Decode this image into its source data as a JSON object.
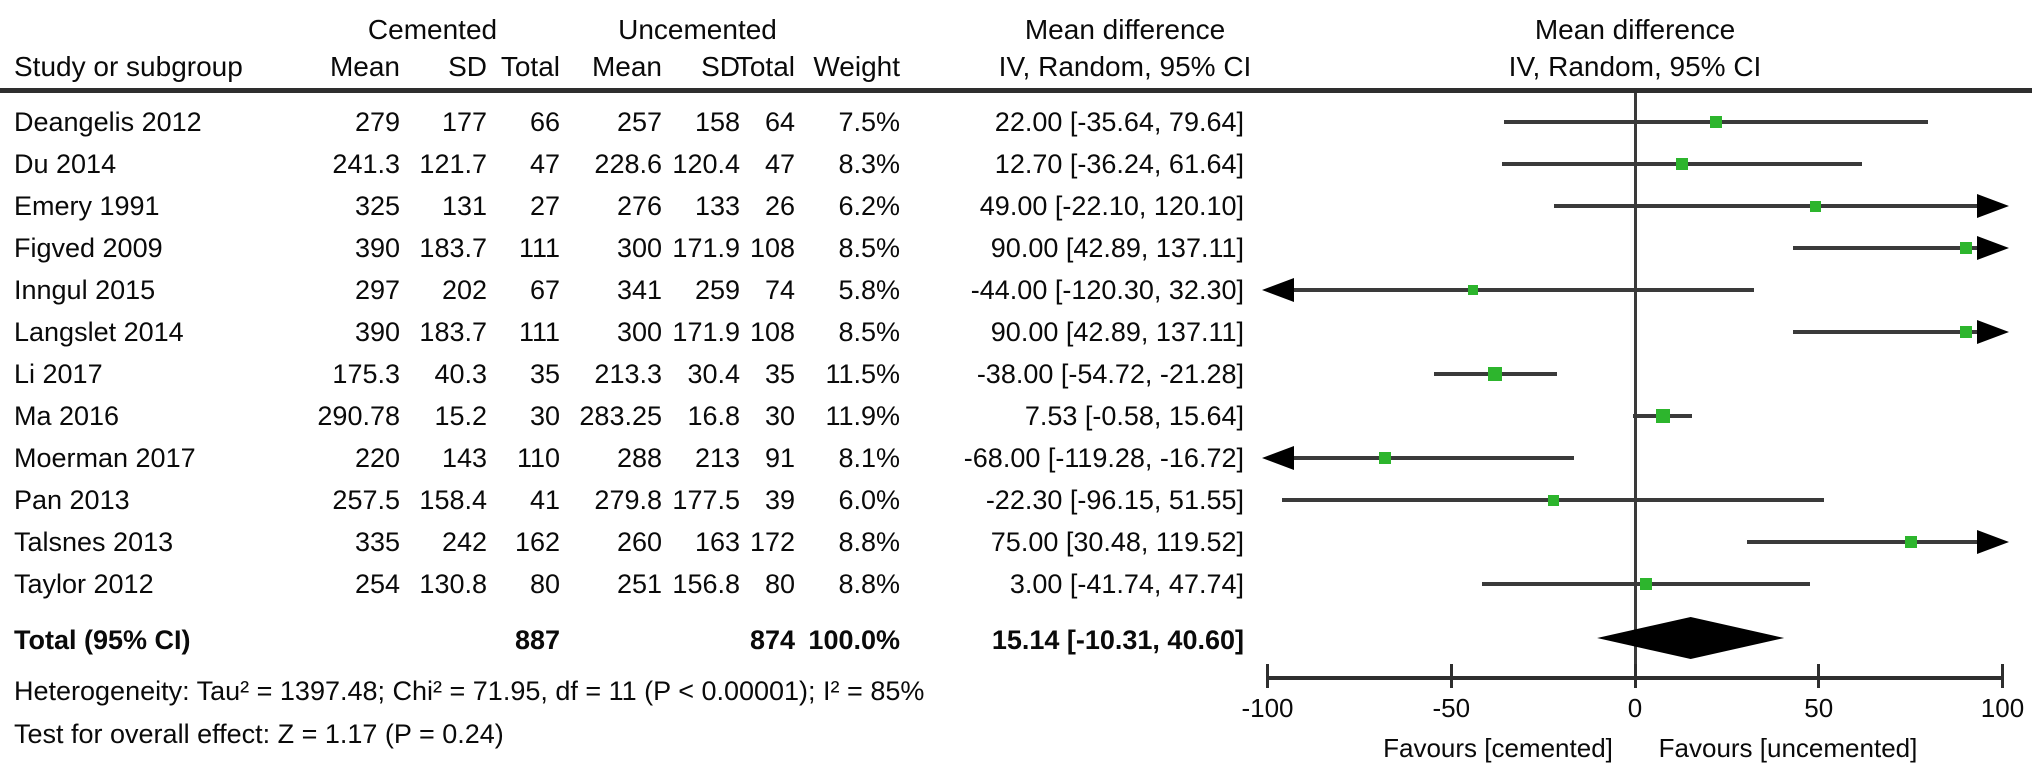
{
  "headers": {
    "group_cemented": "Cemented",
    "group_uncemented": "Uncemented",
    "study_col": "Study or subgroup",
    "mean_c": "Mean",
    "sd_c": "SD",
    "total_c": "Total",
    "mean_u": "Mean",
    "sd_u": "SD",
    "total_u": "Total",
    "weight": "Weight",
    "md_text_title": "Mean difference",
    "md_text_subtitle": "IV, Random, 95% CI",
    "md_plot_title": "Mean difference",
    "md_plot_subtitle": "IV, Random, 95% CI"
  },
  "chart_data": {
    "type": "forest",
    "effect_measure": "Mean difference, IV, Random, 95% CI",
    "x_axis": {
      "min": -100,
      "max": 100,
      "ticks": [
        -100,
        -50,
        0,
        50,
        100
      ],
      "favours_left": "Favours [cemented]",
      "favours_right": "Favours [uncemented]"
    },
    "studies": [
      {
        "name": "Deangelis 2012",
        "mean_c": "279",
        "sd_c": "177",
        "total_c": "66",
        "mean_u": "257",
        "sd_u": "158",
        "total_u": "64",
        "weight": "7.5%",
        "weight_val": 7.5,
        "md": 22.0,
        "ci_low": -35.64,
        "ci_high": 79.64,
        "ci_text": "22.00 [-35.64, 79.64]"
      },
      {
        "name": "Du 2014",
        "mean_c": "241.3",
        "sd_c": "121.7",
        "total_c": "47",
        "mean_u": "228.6",
        "sd_u": "120.4",
        "total_u": "47",
        "weight": "8.3%",
        "weight_val": 8.3,
        "md": 12.7,
        "ci_low": -36.24,
        "ci_high": 61.64,
        "ci_text": "12.70 [-36.24, 61.64]"
      },
      {
        "name": "Emery 1991",
        "mean_c": "325",
        "sd_c": "131",
        "total_c": "27",
        "mean_u": "276",
        "sd_u": "133",
        "total_u": "26",
        "weight": "6.2%",
        "weight_val": 6.2,
        "md": 49.0,
        "ci_low": -22.1,
        "ci_high": 120.1,
        "ci_text": "49.00 [-22.10, 120.10]"
      },
      {
        "name": "Figved 2009",
        "mean_c": "390",
        "sd_c": "183.7",
        "total_c": "111",
        "mean_u": "300",
        "sd_u": "171.9",
        "total_u": "108",
        "weight": "8.5%",
        "weight_val": 8.5,
        "md": 90.0,
        "ci_low": 42.89,
        "ci_high": 137.11,
        "ci_text": "90.00 [42.89, 137.11]"
      },
      {
        "name": "Inngul 2015",
        "mean_c": "297",
        "sd_c": "202",
        "total_c": "67",
        "mean_u": "341",
        "sd_u": "259",
        "total_u": "74",
        "weight": "5.8%",
        "weight_val": 5.8,
        "md": -44.0,
        "ci_low": -120.3,
        "ci_high": 32.3,
        "ci_text": "-44.00 [-120.30, 32.30]"
      },
      {
        "name": "Langslet 2014",
        "mean_c": "390",
        "sd_c": "183.7",
        "total_c": "111",
        "mean_u": "300",
        "sd_u": "171.9",
        "total_u": "108",
        "weight": "8.5%",
        "weight_val": 8.5,
        "md": 90.0,
        "ci_low": 42.89,
        "ci_high": 137.11,
        "ci_text": "90.00 [42.89, 137.11]"
      },
      {
        "name": "Li 2017",
        "mean_c": "175.3",
        "sd_c": "40.3",
        "total_c": "35",
        "mean_u": "213.3",
        "sd_u": "30.4",
        "total_u": "35",
        "weight": "11.5%",
        "weight_val": 11.5,
        "md": -38.0,
        "ci_low": -54.72,
        "ci_high": -21.28,
        "ci_text": "-38.00 [-54.72, -21.28]"
      },
      {
        "name": "Ma 2016",
        "mean_c": "290.78",
        "sd_c": "15.2",
        "total_c": "30",
        "mean_u": "283.25",
        "sd_u": "16.8",
        "total_u": "30",
        "weight": "11.9%",
        "weight_val": 11.9,
        "md": 7.53,
        "ci_low": -0.58,
        "ci_high": 15.64,
        "ci_text": "7.53 [-0.58, 15.64]"
      },
      {
        "name": "Moerman 2017",
        "mean_c": "220",
        "sd_c": "143",
        "total_c": "110",
        "mean_u": "288",
        "sd_u": "213",
        "total_u": "91",
        "weight": "8.1%",
        "weight_val": 8.1,
        "md": -68.0,
        "ci_low": -119.28,
        "ci_high": -16.72,
        "ci_text": "-68.00 [-119.28, -16.72]"
      },
      {
        "name": "Pan 2013",
        "mean_c": "257.5",
        "sd_c": "158.4",
        "total_c": "41",
        "mean_u": "279.8",
        "sd_u": "177.5",
        "total_u": "39",
        "weight": "6.0%",
        "weight_val": 6.0,
        "md": -22.3,
        "ci_low": -96.15,
        "ci_high": 51.55,
        "ci_text": "-22.30 [-96.15, 51.55]"
      },
      {
        "name": "Talsnes 2013",
        "mean_c": "335",
        "sd_c": "242",
        "total_c": "162",
        "mean_u": "260",
        "sd_u": "163",
        "total_u": "172",
        "weight": "8.8%",
        "weight_val": 8.8,
        "md": 75.0,
        "ci_low": 30.48,
        "ci_high": 119.52,
        "ci_text": "75.00 [30.48, 119.52]"
      },
      {
        "name": "Taylor 2012",
        "mean_c": "254",
        "sd_c": "130.8",
        "total_c": "80",
        "mean_u": "251",
        "sd_u": "156.8",
        "total_u": "80",
        "weight": "8.8%",
        "weight_val": 8.8,
        "md": 3.0,
        "ci_low": -41.74,
        "ci_high": 47.74,
        "ci_text": "3.00 [-41.74, 47.74]"
      }
    ],
    "total": {
      "label": "Total (95% CI)",
      "total_c": "887",
      "total_u": "874",
      "weight": "100.0%",
      "md": 15.14,
      "ci_low": -10.31,
      "ci_high": 40.6,
      "ci_text": "15.14 [-10.31, 40.60]"
    },
    "heterogeneity": "Heterogeneity: Tau² = 1397.48; Chi² = 71.95, df = 11 (P < 0.00001); I² = 85%",
    "overall_effect": "Test for overall effect: Z = 1.17 (P = 0.24)",
    "colors": {
      "marker": "#2db52d",
      "line": "#3a3a3a",
      "diamond": "#000000",
      "axis": "#2e2e2e",
      "text": "#0a0a0a"
    }
  }
}
